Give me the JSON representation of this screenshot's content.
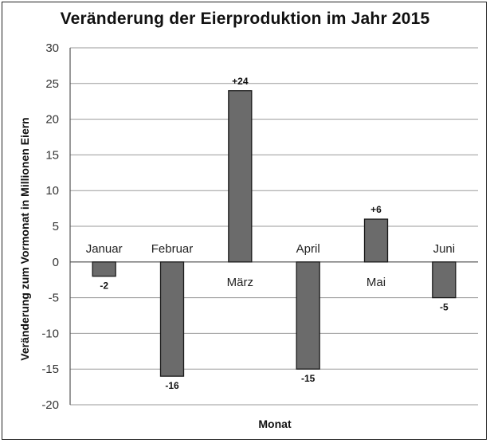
{
  "chart_data": {
    "type": "bar",
    "title": "Veränderung der Eierproduktion im Jahr 2015",
    "xlabel": "Monat",
    "ylabel": "Veränderung zum Vormonat in Millionen Eiern",
    "categories": [
      "Januar",
      "Februar",
      "März",
      "April",
      "Mai",
      "Juni"
    ],
    "values": [
      -2,
      -16,
      24,
      -15,
      6,
      -5
    ],
    "data_labels": [
      "-2",
      "-16",
      "+24",
      "-15",
      "+6",
      "-5"
    ],
    "ylim": [
      -20,
      30
    ],
    "yticks": [
      30,
      25,
      20,
      15,
      10,
      5,
      0,
      -5,
      -10,
      -15,
      -20
    ],
    "grid": true,
    "bar_color": "#6b6b6b",
    "bar_edge_color": "#1a1a1a"
  }
}
